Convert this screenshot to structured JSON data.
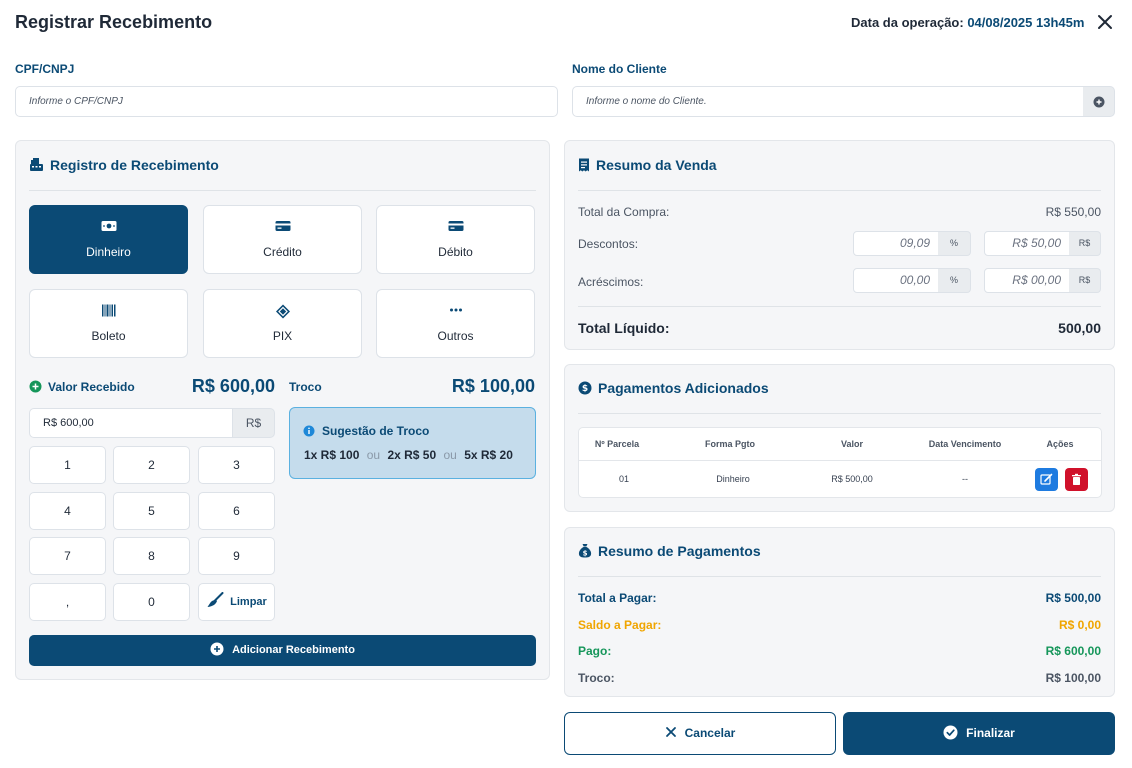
{
  "header": {
    "title": "Registrar Recebimento",
    "op_label": "Data da operação:",
    "op_value": "04/08/2025 13h45m"
  },
  "form": {
    "cpf_label": "CPF/CNPJ",
    "cpf_placeholder": "Informe o CPF/CNPJ",
    "cliente_label": "Nome do Cliente",
    "cliente_placeholder": "Informe o nome do Cliente."
  },
  "registro": {
    "title": "Registro de Recebimento",
    "methods": [
      {
        "label": "Dinheiro",
        "icon": "cash-icon"
      },
      {
        "label": "Crédito",
        "icon": "credit-card-icon"
      },
      {
        "label": "Débito",
        "icon": "debit-card-icon"
      },
      {
        "label": "Boleto",
        "icon": "barcode-icon"
      },
      {
        "label": "PIX",
        "icon": "pix-icon"
      },
      {
        "label": "Outros",
        "icon": "more-icon"
      }
    ],
    "valor_label": "Valor Recebido",
    "valor_amount": "R$ 600,00",
    "valor_input": "R$ 600,00",
    "valor_addon": "R$",
    "troco_label": "Troco",
    "troco_amount": "R$ 100,00",
    "sugestao_title": "Sugestão de Troco",
    "sugestao": [
      "1x R$ 100",
      "2x R$ 50",
      "5x R$ 20"
    ],
    "sugestao_sep": "ou",
    "keys": [
      "1",
      "2",
      "3",
      "4",
      "5",
      "6",
      "7",
      "8",
      "9",
      ",",
      "0"
    ],
    "limpar": "Limpar",
    "add_button": "Adicionar Recebimento"
  },
  "resumo_venda": {
    "title": "Resumo da Venda",
    "total_compra_label": "Total da Compra:",
    "total_compra_value": "R$ 550,00",
    "descontos_label": "Descontos:",
    "descontos_pct": "09,09",
    "descontos_val": "R$ 50,00",
    "acrescimos_label": "Acréscimos:",
    "acrescimos_pct": "00,00",
    "acrescimos_val": "R$ 00,00",
    "pct_addon": "%",
    "rs_addon": "R$",
    "total_liquido_label": "Total Líquido:",
    "total_liquido_value": "500,00"
  },
  "pagamentos": {
    "title": "Pagamentos Adicionados",
    "columns": [
      "Nº Parcela",
      "Forma Pgto",
      "Valor",
      "Data Vencimento",
      "Ações"
    ],
    "rows": [
      {
        "parcela": "01",
        "forma": "Dinheiro",
        "valor": "R$ 500,00",
        "vencimento": "--"
      }
    ]
  },
  "resumo_pag": {
    "title": "Resumo de Pagamentos",
    "items": [
      {
        "label": "Total a Pagar:",
        "value": "R$ 500,00",
        "color": "#0b4a75"
      },
      {
        "label": "Saldo a Pagar:",
        "value": "R$ 0,00",
        "color": "#f0a500"
      },
      {
        "label": "Pago:",
        "value": "R$ 600,00",
        "color": "#15965a"
      },
      {
        "label": "Troco:",
        "value": "R$ 100,00",
        "color": "#4b5563"
      }
    ]
  },
  "footer": {
    "cancelar": "Cancelar",
    "finalizar": "Finalizar"
  }
}
